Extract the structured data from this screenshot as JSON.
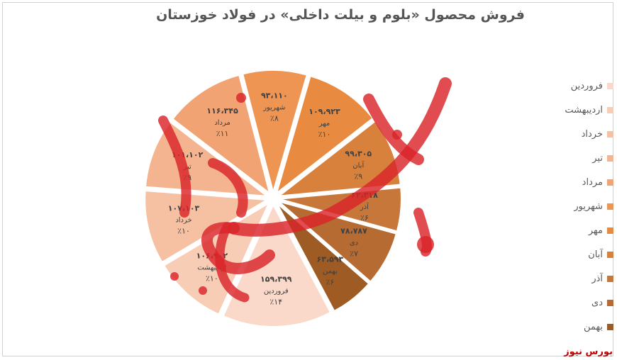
{
  "chart_data": {
    "type": "pie",
    "title": "فروش محصول «بلوم و بیلت داخلی» در فولاد خوزستان",
    "categories": [
      "فروردین",
      "اردیبهشت",
      "خرداد",
      "تیر",
      "مرداد",
      "شهریور",
      "مهر",
      "آبان",
      "آذر",
      "دی",
      "بهمن"
    ],
    "values": [
      159399,
      106902,
      107103,
      101102,
      116345,
      93110,
      109923,
      99305,
      63318,
      78787,
      63593
    ],
    "value_labels": [
      "۱۵۹،۳۹۹",
      "۱۰۶،۹۰۲",
      "۱۰۷،۱۰۳",
      "۱۰۱،۱۰۲",
      "۱۱۶،۳۴۵",
      "۹۳،۱۱۰",
      "۱۰۹،۹۲۳",
      "۹۹،۳۰۵",
      "۶۳،۳۱۸",
      "۷۸،۷۸۷",
      "۶۳،۵۹۳"
    ],
    "percent_labels": [
      "٪۱۴",
      "٪۱۰",
      "٪۱۰",
      "٪۹",
      "٪۱۱",
      "٪۸",
      "٪۱۰",
      "٪۹",
      "٪۶",
      "٪۷",
      "٪۶"
    ],
    "colors": [
      "#fad9ca",
      "#f8cdb6",
      "#f6c0a3",
      "#f4b490",
      "#f1a374",
      "#ee9554",
      "#e88b40",
      "#d7813c",
      "#c8773a",
      "#b56b31",
      "#9e5b24"
    ],
    "legend_position": "right",
    "exploded": true
  },
  "brand": "بورس نیوز",
  "watermark": "بورس نیوز"
}
